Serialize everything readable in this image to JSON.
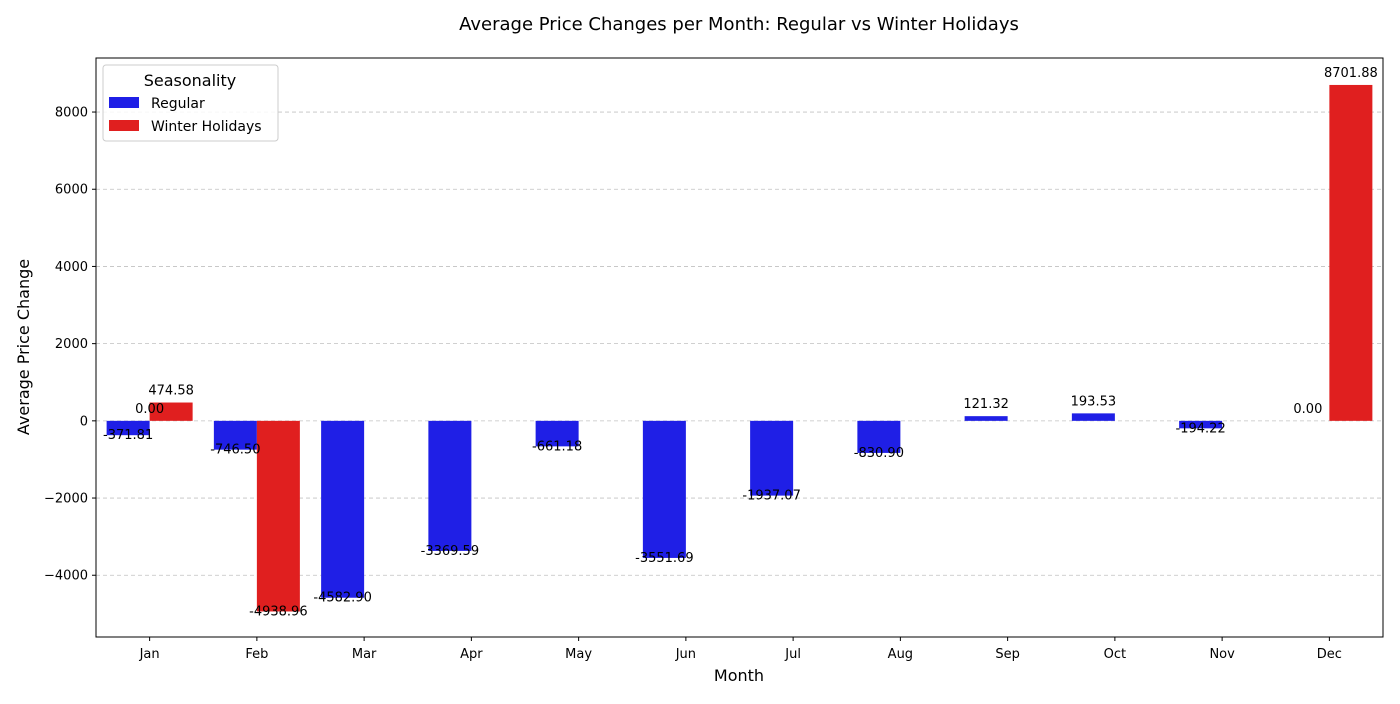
{
  "chart_data": {
    "type": "bar",
    "title": "Average Price Changes per Month: Regular vs Winter Holidays",
    "xlabel": "Month",
    "ylabel": "Average Price Change",
    "categories": [
      "Jan",
      "Feb",
      "Mar",
      "Apr",
      "May",
      "Jun",
      "Jul",
      "Aug",
      "Sep",
      "Oct",
      "Nov",
      "Dec"
    ],
    "ylim": [
      -5600,
      9400
    ],
    "yticks": [
      -4000,
      -2000,
      0,
      2000,
      4000,
      6000,
      8000
    ],
    "ytick_labels": [
      "−4000",
      "−2000",
      "0",
      "2000",
      "4000",
      "6000",
      "8000"
    ],
    "grid": "horizontal dashed",
    "legend": {
      "title": "Seasonality",
      "position": "top-left"
    },
    "series": [
      {
        "name": "Regular",
        "color": "#1f1fe6",
        "values": [
          -371.81,
          -746.5,
          -4582.9,
          -3369.59,
          -661.18,
          -3551.69,
          -1937.07,
          -830.9,
          121.32,
          193.53,
          -194.22,
          0.0
        ],
        "labels": [
          "-371.81",
          "-746.50",
          "-4582.90",
          "-3369.59",
          "-661.18",
          "-3551.69",
          "-1937.07",
          "-830.90",
          "121.32",
          "193.53",
          "-194.22",
          "0.00"
        ]
      },
      {
        "name": "Winter Holidays",
        "color": "#e01f1f",
        "values": [
          474.58,
          -4938.96,
          0,
          0,
          0,
          0,
          0,
          0,
          0,
          0,
          0,
          8701.88
        ],
        "labels": [
          "474.58",
          "-4938.96",
          "",
          "",
          "",
          "",
          "",
          "",
          "",
          "",
          "",
          "8701.88"
        ]
      }
    ],
    "extra_labels": [
      {
        "category": "Jan",
        "text": "0.00"
      }
    ]
  }
}
